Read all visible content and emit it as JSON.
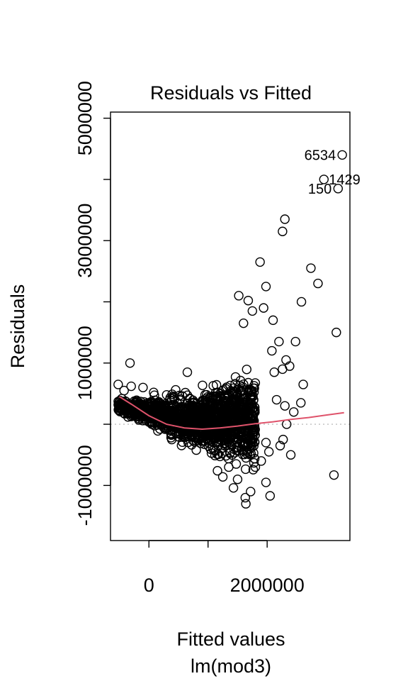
{
  "chart_data": {
    "type": "scatter",
    "title": "Residuals vs Fitted",
    "xlabel": "Fitted values",
    "sublabel": "lm(mod3)",
    "ylabel": "Residuals",
    "xlim": [
      -650000,
      3400000
    ],
    "ylim": [
      -1900000,
      5100000
    ],
    "x_ticks": [
      0,
      2000000
    ],
    "x_tick_labels": [
      "0",
      "2000000"
    ],
    "y_ticks": [
      -1000000,
      1000000,
      3000000,
      5000000
    ],
    "y_tick_labels": [
      "-1000000",
      "1000000",
      "3000000",
      "5000000"
    ],
    "y_minor_ticks": [
      0,
      2000000,
      4000000
    ],
    "zero_line": {
      "y": 0,
      "style": "dotted",
      "color": "#bebebe"
    },
    "smooth_color": "#df536b",
    "point_color": "#000000",
    "smooth_line": [
      [
        -500000,
        450000
      ],
      [
        -300000,
        330000
      ],
      [
        0,
        140000
      ],
      [
        300000,
        0
      ],
      [
        600000,
        -60000
      ],
      [
        900000,
        -80000
      ],
      [
        1200000,
        -60000
      ],
      [
        1500000,
        -30000
      ],
      [
        1800000,
        10000
      ],
      [
        2100000,
        40000
      ],
      [
        2400000,
        80000
      ],
      [
        2700000,
        110000
      ],
      [
        3000000,
        150000
      ],
      [
        3300000,
        190000
      ]
    ],
    "labeled_points": [
      {
        "label": "6534",
        "x": 3270000,
        "y": 4400000
      },
      {
        "label": "1429",
        "x": 2960000,
        "y": 4000000
      },
      {
        "label": "150",
        "x": 3200000,
        "y": 3850000
      }
    ],
    "scattered_points": [
      [
        -520000,
        650000
      ],
      [
        -420000,
        550000
      ],
      [
        -300000,
        620000
      ],
      [
        -320000,
        1000000
      ],
      [
        -100000,
        600000
      ],
      [
        80000,
        520000
      ],
      [
        300000,
        480000
      ],
      [
        650000,
        850000
      ],
      [
        2300000,
        3350000
      ],
      [
        2260000,
        3150000
      ],
      [
        1880000,
        2650000
      ],
      [
        2740000,
        2550000
      ],
      [
        2860000,
        2300000
      ],
      [
        1980000,
        2250000
      ],
      [
        1520000,
        2100000
      ],
      [
        1680000,
        2020000
      ],
      [
        2580000,
        2000000
      ],
      [
        1940000,
        1900000
      ],
      [
        1750000,
        1850000
      ],
      [
        2100000,
        1700000
      ],
      [
        1600000,
        1650000
      ],
      [
        3170000,
        1500000
      ],
      [
        2480000,
        1350000
      ],
      [
        2200000,
        1350000
      ],
      [
        2080000,
        1200000
      ],
      [
        2320000,
        1050000
      ],
      [
        2380000,
        950000
      ],
      [
        2260000,
        900000
      ],
      [
        2120000,
        850000
      ],
      [
        2610000,
        650000
      ],
      [
        2160000,
        400000
      ],
      [
        2300000,
        300000
      ],
      [
        2570000,
        350000
      ],
      [
        2450000,
        200000
      ],
      [
        2330000,
        0
      ],
      [
        2270000,
        -250000
      ],
      [
        2220000,
        -350000
      ],
      [
        2400000,
        -500000
      ],
      [
        1980000,
        -300000
      ],
      [
        2030000,
        -450000
      ],
      [
        1900000,
        -600000
      ],
      [
        1800000,
        -700000
      ],
      [
        1980000,
        -950000
      ],
      [
        1720000,
        -1100000
      ],
      [
        1630000,
        -1200000
      ],
      [
        1640000,
        -1300000
      ],
      [
        2050000,
        -1170000
      ],
      [
        1430000,
        -1040000
      ],
      [
        1250000,
        -860000
      ],
      [
        1160000,
        -760000
      ],
      [
        3130000,
        -830000
      ],
      [
        1500000,
        -900000
      ],
      [
        1350000,
        -700000
      ]
    ]
  }
}
